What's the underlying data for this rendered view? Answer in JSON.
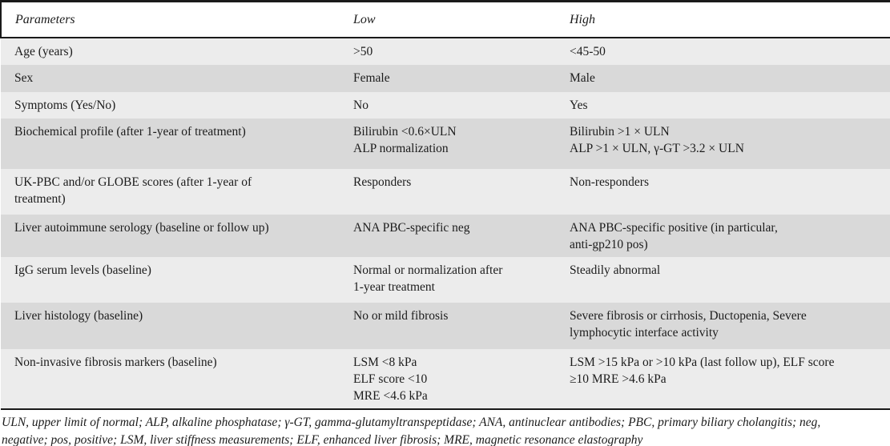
{
  "theme": {
    "text_color": "#1c1c1c",
    "rule_color": "#1a1a1a",
    "stripe_light": "#ececec",
    "stripe_dark": "#d9d9d9"
  },
  "table": {
    "columns": {
      "parameters": "Parameters",
      "low": "Low",
      "high": "High"
    },
    "rows": [
      {
        "parameter": [
          "Age (years)"
        ],
        "low": [
          ">50"
        ],
        "high": [
          "<45-50"
        ]
      },
      {
        "parameter": [
          "Sex"
        ],
        "low": [
          "Female"
        ],
        "high": [
          "Male"
        ]
      },
      {
        "parameter": [
          "Symptoms (Yes/No)"
        ],
        "low": [
          "No"
        ],
        "high": [
          "Yes"
        ]
      },
      {
        "parameter": [
          "Biochemical profile (after 1-year of treatment)"
        ],
        "low": [
          "Bilirubin <0.6×ULN",
          "ALP normalization"
        ],
        "high": [
          "Bilirubin >1 × ULN",
          "ALP >1 × ULN, γ-GT >3.2 × ULN"
        ]
      },
      {
        "parameter": [
          "UK-PBC and/or GLOBE scores (after 1-year of",
          "treatment)"
        ],
        "low": [
          "Responders"
        ],
        "high": [
          "Non-responders"
        ]
      },
      {
        "parameter": [
          "Liver autoimmune serology (baseline or follow up)"
        ],
        "low": [
          "ANA PBC-specific neg"
        ],
        "high": [
          "ANA PBC-specific positive (in particular,",
          "anti-gp210 pos)"
        ]
      },
      {
        "parameter": [
          "IgG serum levels (baseline)"
        ],
        "low": [
          "Normal or normalization after",
          "1-year treatment"
        ],
        "high": [
          "Steadily abnormal"
        ]
      },
      {
        "parameter": [
          "Liver histology (baseline)"
        ],
        "low": [
          "No or mild fibrosis"
        ],
        "high": [
          "Severe fibrosis or cirrhosis, Ductopenia, Severe",
          "lymphocytic interface activity"
        ]
      },
      {
        "parameter": [
          "Non-invasive fibrosis markers (baseline)"
        ],
        "low": [
          "LSM <8 kPa",
          "ELF score <10",
          "MRE <4.6 kPa"
        ],
        "high": [
          "LSM >15 kPa or >10 kPa (last follow up), ELF score",
          "≥10 MRE >4.6 kPa"
        ]
      }
    ]
  },
  "footnote": {
    "lines": [
      "ULN, upper limit of normal; ALP, alkaline phosphatase; γ-GT, gamma-glutamyltranspeptidase; ANA, antinuclear antibodies; PBC, primary biliary cholangitis; neg,",
      "negative; pos, positive; LSM, liver stiffness measurements; ELF, enhanced liver fibrosis; MRE, magnetic resonance elastography"
    ]
  }
}
